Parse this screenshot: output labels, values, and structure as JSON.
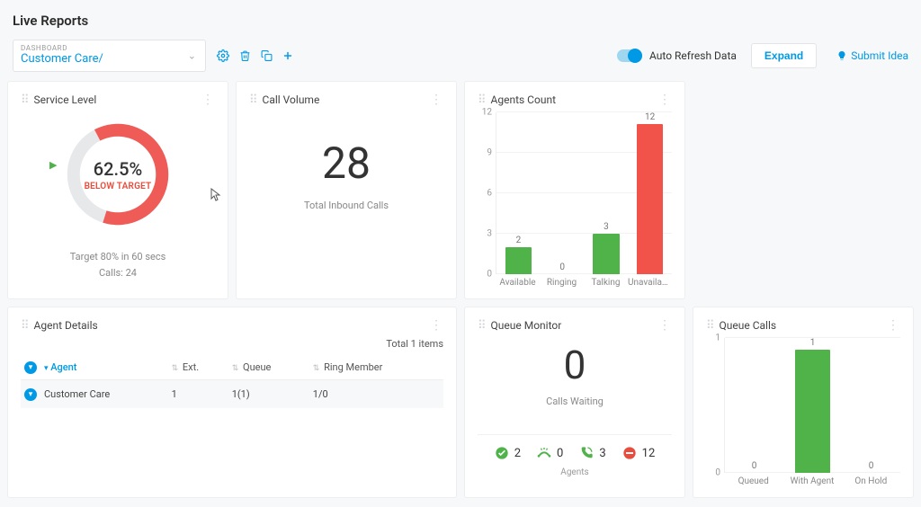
{
  "page": {
    "title": "Live Reports"
  },
  "dashboard_select": {
    "overline": "DASHBOARD",
    "value": "Customer Care/"
  },
  "toolbar": {
    "auto_refresh_label": "Auto Refresh Data",
    "auto_refresh_on": true,
    "expand_label": "Expand",
    "submit_idea_label": "Submit Idea"
  },
  "service_level": {
    "title": "Service Level",
    "percent": 62.5,
    "percent_display": "62.5%",
    "status_label": "BELOW TARGET",
    "status_color": "#e74c3c",
    "ring_filled_color": "#ef5b56",
    "ring_remaining_color": "#e6e8ea",
    "target_line": "Target 80% in 60 secs",
    "calls_line": "Calls: 24",
    "indicator_color": "#4fb34a"
  },
  "call_volume": {
    "title": "Call Volume",
    "value": "28",
    "label": "Total Inbound Calls"
  },
  "agents_count": {
    "title": "Agents Count",
    "y_max": 12,
    "y_ticks": [
      0,
      3,
      6,
      9,
      12
    ],
    "categories": [
      "Available",
      "Ringing",
      "Talking",
      "Unavailabl..."
    ],
    "values": [
      2,
      0,
      3,
      12
    ],
    "colors": [
      "#4fb34a",
      "#4fb34a",
      "#4fb34a",
      "#f1534b"
    ],
    "grid_color": "#f2f2f2",
    "label_fontsize": 10
  },
  "agent_details": {
    "title": "Agent Details",
    "total_label": "Total 1 items",
    "columns": [
      {
        "key": "agent",
        "label": "Agent",
        "active": true
      },
      {
        "key": "ext",
        "label": "Ext."
      },
      {
        "key": "queue",
        "label": "Queue"
      },
      {
        "key": "ring",
        "label": "Ring Member"
      }
    ],
    "rows": [
      {
        "agent": "Customer Care",
        "ext": "1",
        "queue": "1(1)",
        "ring": "1/0"
      }
    ]
  },
  "queue_monitor": {
    "title": "Queue Monitor",
    "value": "0",
    "label": "Calls Waiting",
    "agents_label": "Agents",
    "stats": [
      {
        "icon": "check",
        "color": "#4fb34a",
        "value": "2"
      },
      {
        "icon": "ringing",
        "color": "#4fb34a",
        "value": "0"
      },
      {
        "icon": "talking",
        "color": "#4fb34a",
        "value": "3"
      },
      {
        "icon": "unavail",
        "color": "#e74c3c",
        "value": "12"
      }
    ]
  },
  "queue_calls": {
    "title": "Queue Calls",
    "y_max": 1,
    "y_ticks": [
      0,
      1
    ],
    "categories": [
      "Queued",
      "With Agent",
      "On Hold"
    ],
    "values": [
      0,
      1,
      0
    ],
    "color": "#4fb34a",
    "grid_color": "#f2f2f2"
  },
  "colors": {
    "link_blue": "#0099e5",
    "border": "#eceef0",
    "background": "#f7f8f9"
  }
}
